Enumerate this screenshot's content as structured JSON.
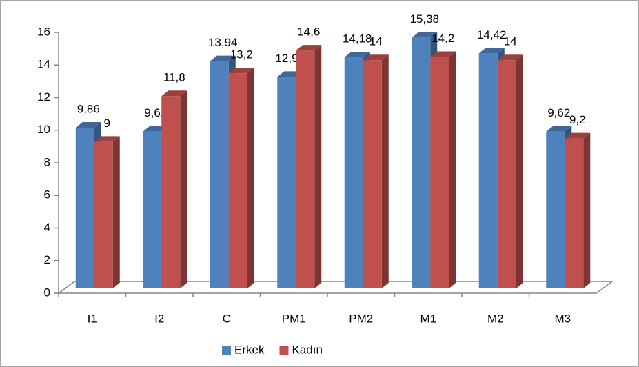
{
  "chart_data": {
    "type": "bar3d",
    "categories": [
      "I1",
      "I2",
      "C",
      "PM1",
      "PM2",
      "M1",
      "M2",
      "M3"
    ],
    "series": [
      {
        "name": "Erkek",
        "color": "#4f81bd",
        "values": [
          9.86,
          9.62,
          13.94,
          12.98,
          14.18,
          15.38,
          14.42,
          9.62
        ],
        "value_labels": [
          "9,86",
          "9,62",
          "13,94",
          "12,98",
          "14,18",
          "15,38",
          "14,42",
          "9,62"
        ]
      },
      {
        "name": "Kadın",
        "color": "#c0504d",
        "values": [
          9,
          11.8,
          13.2,
          14.6,
          14,
          14.2,
          14,
          9.2
        ],
        "value_labels": [
          "9",
          "11,8",
          "13,2",
          "14,6",
          "14",
          "14,2",
          "14",
          "9,2"
        ]
      }
    ],
    "ylim": [
      0,
      16
    ],
    "yticks": [
      0,
      2,
      4,
      6,
      8,
      10,
      12,
      14,
      16
    ],
    "legend": "bottom"
  }
}
